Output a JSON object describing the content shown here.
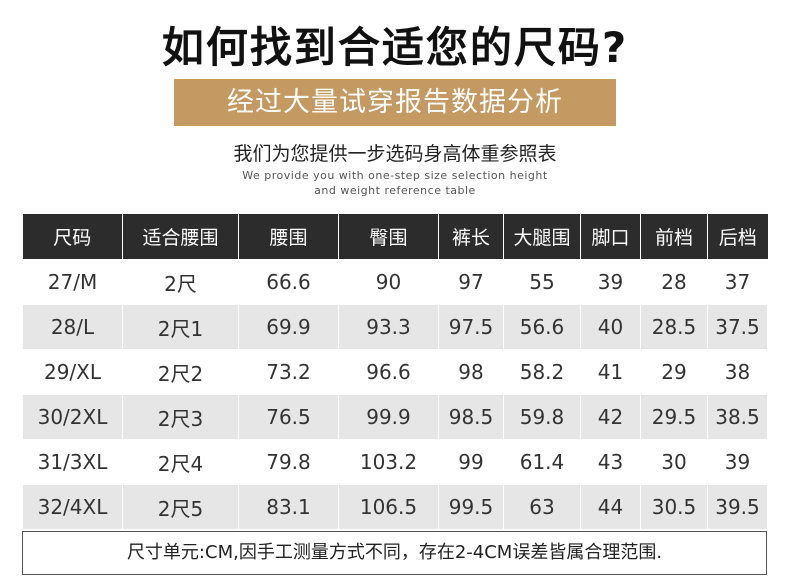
{
  "title": "如何找到合适您的尺码?",
  "banner": "经过大量试穿报告数据分析",
  "subtitle_zh": "我们为您提供一步选码身高体重参照表",
  "subtitle_en_line1": "We provide you with one-step size selection height",
  "subtitle_en_line2": "and weight reference table",
  "table": {
    "headers": [
      "尺码",
      "适合腰围",
      "腰围",
      "臀围",
      "裤长",
      "大腿围",
      "脚口",
      "前档",
      "后档"
    ],
    "rows": [
      [
        "27/M",
        "2尺",
        "66.6",
        "90",
        "97",
        "55",
        "39",
        "28",
        "37"
      ],
      [
        "28/L",
        "2尺1",
        "69.9",
        "93.3",
        "97.5",
        "56.6",
        "40",
        "28.5",
        "37.5"
      ],
      [
        "29/XL",
        "2尺2",
        "73.2",
        "96.6",
        "98",
        "58.2",
        "41",
        "29",
        "38"
      ],
      [
        "30/2XL",
        "2尺3",
        "76.5",
        "99.9",
        "98.5",
        "59.8",
        "42",
        "29.5",
        "38.5"
      ],
      [
        "31/3XL",
        "2尺4",
        "79.8",
        "103.2",
        "99",
        "61.4",
        "43",
        "30",
        "39"
      ],
      [
        "32/4XL",
        "2尺5",
        "83.1",
        "106.5",
        "99.5",
        "63",
        "44",
        "30.5",
        "39.5"
      ]
    ]
  },
  "footer_note": "尺寸单元:CM,因手工测量方式不同，存在2-4CM误差皆属合理范围.",
  "colors": {
    "banner": "#c49a62",
    "header_bg": "#2c2c2c",
    "stripe": "#e6e6e6"
  }
}
